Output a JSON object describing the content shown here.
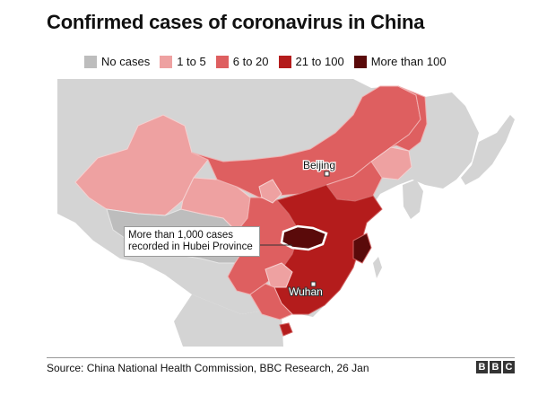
{
  "title": "Confirmed cases of coronavirus in China",
  "legend": [
    {
      "label": "No cases",
      "color": "#bdbdbd"
    },
    {
      "label": "1 to 5",
      "color": "#eea1a1"
    },
    {
      "label": "6 to 20",
      "color": "#de5f60"
    },
    {
      "label": "21 to 100",
      "color": "#b41c1c"
    },
    {
      "label": "More than 100",
      "color": "#5a0a0a"
    }
  ],
  "labels": {
    "beijing": "Beijing",
    "wuhan": "Wuhan",
    "callout": "More than 1,000 cases recorded in Hubei Province"
  },
  "source": "Source: China National Health Commission, BBC Research, 26 Jan",
  "logo": [
    "B",
    "B",
    "C"
  ]
}
